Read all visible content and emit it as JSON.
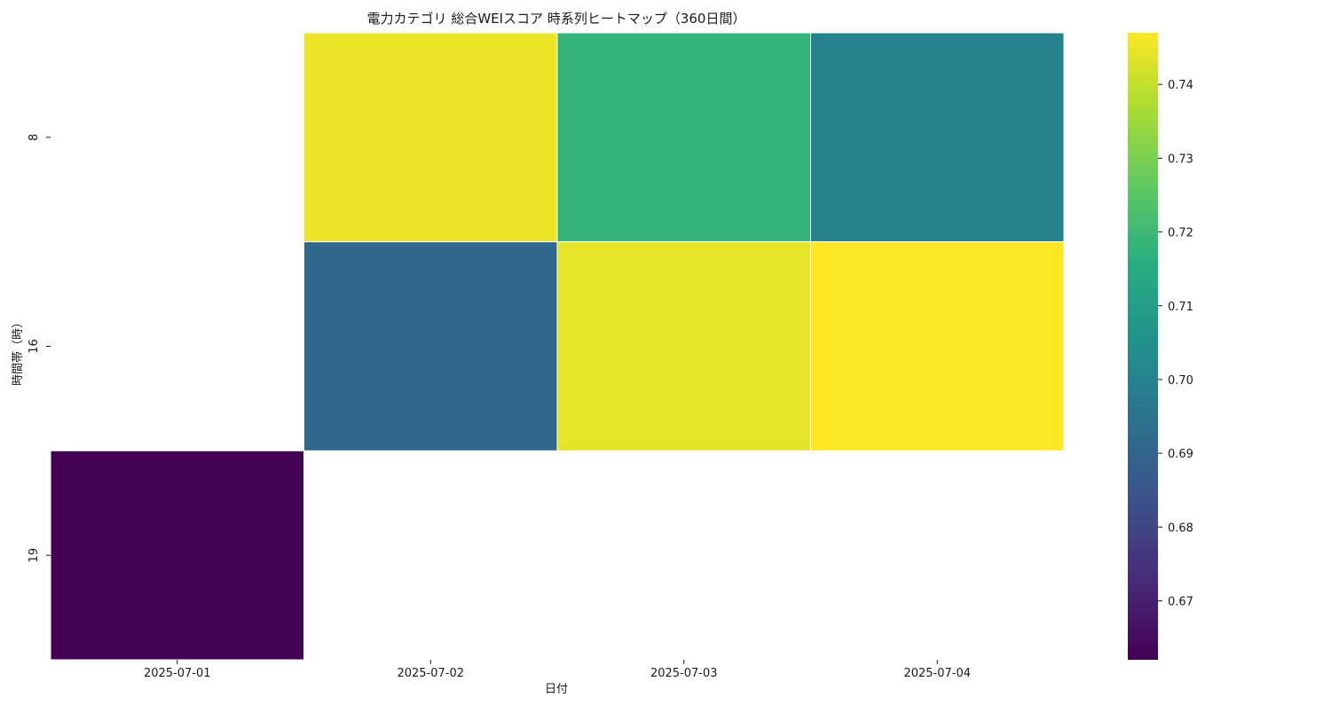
{
  "chart_data": {
    "type": "heatmap",
    "title": "電力カテゴリ 総合WEIスコア 時系列ヒートマップ（360日間）",
    "xlabel": "日付",
    "ylabel": "時間帯（時）",
    "x_categories": [
      "2025-07-01",
      "2025-07-02",
      "2025-07-03",
      "2025-07-04"
    ],
    "y_categories": [
      "8",
      "16",
      "19"
    ],
    "values": [
      [
        null,
        0.745,
        0.718,
        0.7
      ],
      [
        null,
        0.691,
        0.744,
        0.747
      ],
      [
        0.662,
        null,
        null,
        null
      ]
    ],
    "colorbar": {
      "colormap": "viridis",
      "min": 0.662,
      "max": 0.747,
      "ticks": [
        0.67,
        0.68,
        0.69,
        0.7,
        0.71,
        0.72,
        0.73,
        0.74
      ],
      "tick_labels": [
        "0.67",
        "0.68",
        "0.69",
        "0.70",
        "0.71",
        "0.72",
        "0.73",
        "0.74"
      ]
    },
    "grid": false,
    "cell_border_color": "#ffffff",
    "missing_color": "#ffffff"
  }
}
